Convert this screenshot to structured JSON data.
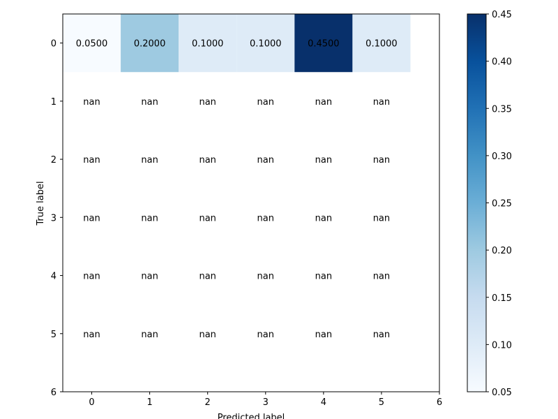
{
  "chart_data": {
    "type": "heatmap",
    "title": "",
    "xlabel": "Predicted label",
    "ylabel": "True label",
    "x_ticks": [
      "0",
      "1",
      "2",
      "3",
      "4",
      "5",
      "6"
    ],
    "y_ticks": [
      "0",
      "1",
      "2",
      "3",
      "4",
      "5",
      "6"
    ],
    "x_range": [
      -0.5,
      6
    ],
    "y_range": [
      -0.5,
      6
    ],
    "rows": [
      {
        "label": "0",
        "values": [
          0.05,
          0.2,
          0.1,
          0.1,
          0.45,
          0.1
        ],
        "texts": [
          "0.0500",
          "0.2000",
          "0.1000",
          "0.1000",
          "0.4500",
          "0.1000"
        ]
      },
      {
        "label": "1",
        "values": [
          null,
          null,
          null,
          null,
          null,
          null
        ],
        "texts": [
          "nan",
          "nan",
          "nan",
          "nan",
          "nan",
          "nan"
        ]
      },
      {
        "label": "2",
        "values": [
          null,
          null,
          null,
          null,
          null,
          null
        ],
        "texts": [
          "nan",
          "nan",
          "nan",
          "nan",
          "nan",
          "nan"
        ]
      },
      {
        "label": "3",
        "values": [
          null,
          null,
          null,
          null,
          null,
          null
        ],
        "texts": [
          "nan",
          "nan",
          "nan",
          "nan",
          "nan",
          "nan"
        ]
      },
      {
        "label": "4",
        "values": [
          null,
          null,
          null,
          null,
          null,
          null
        ],
        "texts": [
          "nan",
          "nan",
          "nan",
          "nan",
          "nan",
          "nan"
        ]
      },
      {
        "label": "5",
        "values": [
          null,
          null,
          null,
          null,
          null,
          null
        ],
        "texts": [
          "nan",
          "nan",
          "nan",
          "nan",
          "nan",
          "nan"
        ]
      }
    ],
    "colorbar": {
      "colormap": "Blues",
      "min": 0.05,
      "max": 0.45,
      "ticks": [
        "0.05",
        "0.10",
        "0.15",
        "0.20",
        "0.25",
        "0.30",
        "0.35",
        "0.40",
        "0.45"
      ],
      "colors": [
        "#f7fbff",
        "#deebf7",
        "#c6dbef",
        "#9ecae1",
        "#6baed6",
        "#4292c6",
        "#2171b5",
        "#08519c",
        "#08306b"
      ]
    },
    "grid": false,
    "legend": "colorbar-right"
  }
}
